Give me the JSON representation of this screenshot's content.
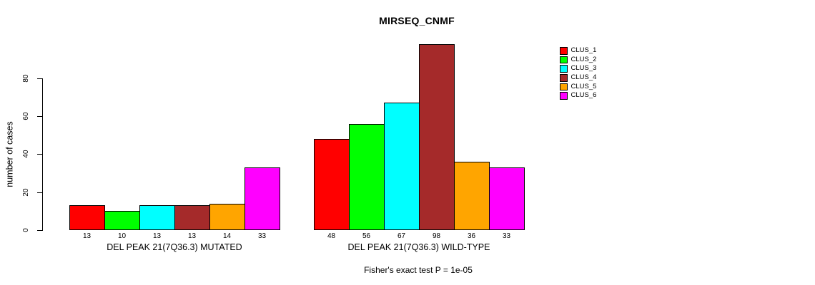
{
  "chart_data": {
    "type": "bar",
    "title": "MIRSEQ_CNMF",
    "ylabel": "number of cases",
    "xlabel": "",
    "y_ticks": [
      0,
      20,
      40,
      60,
      80
    ],
    "ylim": [
      0,
      100
    ],
    "categories": [
      "CLUS_1",
      "CLUS_2",
      "CLUS_3",
      "CLUS_4",
      "CLUS_5",
      "CLUS_6"
    ],
    "series_colors": [
      "#FF0000",
      "#00FF00",
      "#00FFFF",
      "#A52A2A",
      "#FFA500",
      "#FF00FF"
    ],
    "groups": [
      {
        "label": "DEL PEAK 21(7Q36.3) MUTATED",
        "values": [
          13,
          10,
          13,
          13,
          14,
          33
        ]
      },
      {
        "label": "DEL PEAK 21(7Q36.3) WILD-TYPE",
        "values": [
          48,
          56,
          67,
          98,
          36,
          33
        ]
      }
    ],
    "legend_position": "right",
    "grid": false,
    "annotation": "Fisher's exact test P = 1e-05"
  }
}
